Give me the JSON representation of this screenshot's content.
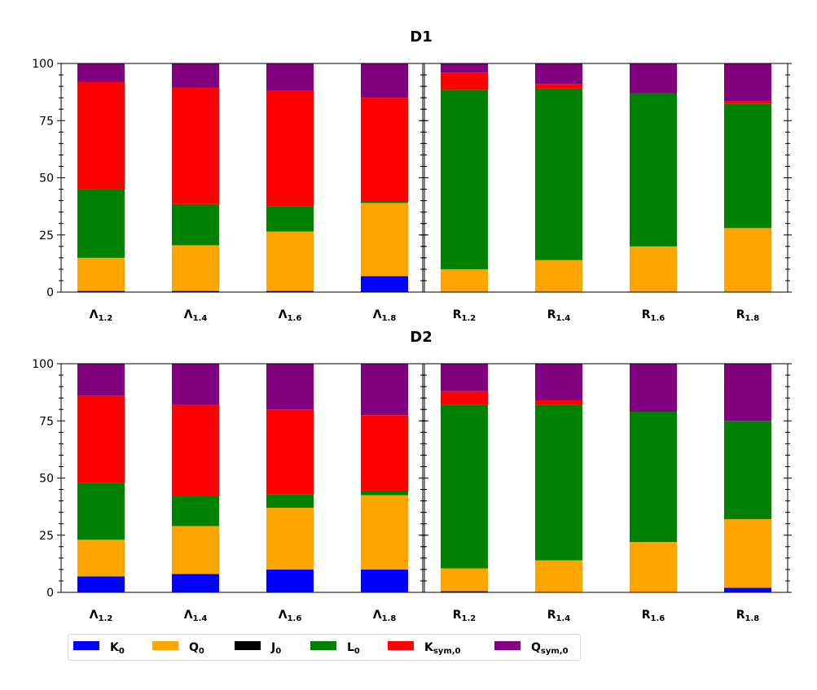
{
  "titles": [
    "D1",
    "D2"
  ],
  "legend": [
    {
      "key": "K0",
      "base": "K",
      "sub": "0",
      "color": "#0000ff"
    },
    {
      "key": "Q0",
      "base": "Q",
      "sub": "0",
      "color": "#ffa500"
    },
    {
      "key": "J0",
      "base": "J",
      "sub": "0",
      "color": "#000000"
    },
    {
      "key": "L0",
      "base": "L",
      "sub": "0",
      "color": "#008000"
    },
    {
      "key": "Ksym0",
      "base": "K",
      "sub": "sym,0",
      "color": "#ff0000"
    },
    {
      "key": "Qsym0",
      "base": "Q",
      "sub": "sym,0",
      "color": "#800080"
    }
  ],
  "chart_data": [
    {
      "type": "bar",
      "stacked": true,
      "title": "D1",
      "panel": "left",
      "categories": [
        {
          "base": "Λ",
          "sub": "1.2"
        },
        {
          "base": "Λ",
          "sub": "1.4"
        },
        {
          "base": "Λ",
          "sub": "1.6"
        },
        {
          "base": "Λ",
          "sub": "1.8"
        }
      ],
      "ylim": [
        0,
        100
      ],
      "yticks": [
        0,
        25,
        50,
        75,
        100
      ],
      "series": [
        {
          "name": "K0",
          "values": [
            0.5,
            0.5,
            0.5,
            7
          ]
        },
        {
          "name": "Q0",
          "values": [
            14.5,
            20,
            26,
            32
          ]
        },
        {
          "name": "J0",
          "values": [
            0,
            0,
            0,
            0
          ]
        },
        {
          "name": "L0",
          "values": [
            30,
            18,
            11,
            0.5
          ]
        },
        {
          "name": "Ksym0",
          "values": [
            47,
            51,
            50.5,
            45.5
          ]
        },
        {
          "name": "Qsym0",
          "values": [
            8,
            10.5,
            12,
            15
          ]
        }
      ]
    },
    {
      "type": "bar",
      "stacked": true,
      "title": "D1",
      "panel": "right",
      "categories": [
        {
          "base": "R",
          "sub": "1.2"
        },
        {
          "base": "R",
          "sub": "1.4"
        },
        {
          "base": "R",
          "sub": "1.6"
        },
        {
          "base": "R",
          "sub": "1.8"
        }
      ],
      "ylim": [
        0,
        100
      ],
      "yticks": [
        0,
        25,
        50,
        75,
        100
      ],
      "series": [
        {
          "name": "K0",
          "values": [
            0,
            0,
            0,
            0
          ]
        },
        {
          "name": "Q0",
          "values": [
            10,
            14,
            20,
            28
          ]
        },
        {
          "name": "J0",
          "values": [
            0,
            0,
            0,
            0
          ]
        },
        {
          "name": "L0",
          "values": [
            78.5,
            75,
            67,
            54.5
          ]
        },
        {
          "name": "Ksym0",
          "values": [
            7.5,
            2,
            0,
            1
          ]
        },
        {
          "name": "Qsym0",
          "values": [
            4,
            9,
            13,
            16.5
          ]
        }
      ]
    },
    {
      "type": "bar",
      "stacked": true,
      "title": "D2",
      "panel": "left",
      "categories": [
        {
          "base": "Λ",
          "sub": "1.2"
        },
        {
          "base": "Λ",
          "sub": "1.4"
        },
        {
          "base": "Λ",
          "sub": "1.6"
        },
        {
          "base": "Λ",
          "sub": "1.8"
        }
      ],
      "ylim": [
        0,
        100
      ],
      "yticks": [
        0,
        25,
        50,
        75,
        100
      ],
      "series": [
        {
          "name": "K0",
          "values": [
            7,
            8,
            10,
            10
          ]
        },
        {
          "name": "Q0",
          "values": [
            16,
            21,
            27,
            32.5
          ]
        },
        {
          "name": "J0",
          "values": [
            0,
            0,
            0,
            0
          ]
        },
        {
          "name": "L0",
          "values": [
            25,
            13,
            6,
            2
          ]
        },
        {
          "name": "Ksym0",
          "values": [
            38,
            40,
            37,
            33
          ]
        },
        {
          "name": "Qsym0",
          "values": [
            14,
            18,
            20,
            22.5
          ]
        }
      ]
    },
    {
      "type": "bar",
      "stacked": true,
      "title": "D2",
      "panel": "right",
      "categories": [
        {
          "base": "R",
          "sub": "1.2"
        },
        {
          "base": "R",
          "sub": "1.4"
        },
        {
          "base": "R",
          "sub": "1.6"
        },
        {
          "base": "R",
          "sub": "1.8"
        }
      ],
      "ylim": [
        0,
        100
      ],
      "yticks": [
        0,
        25,
        50,
        75,
        100
      ],
      "series": [
        {
          "name": "K0",
          "values": [
            0.5,
            0,
            0,
            2
          ]
        },
        {
          "name": "Q0",
          "values": [
            10,
            14,
            22,
            30
          ]
        },
        {
          "name": "J0",
          "values": [
            0,
            0,
            0,
            0
          ]
        },
        {
          "name": "L0",
          "values": [
            71.5,
            68,
            57,
            43
          ]
        },
        {
          "name": "Ksym0",
          "values": [
            6,
            2,
            0,
            0
          ]
        },
        {
          "name": "Qsym0",
          "values": [
            12,
            16,
            21,
            25
          ]
        }
      ]
    }
  ]
}
